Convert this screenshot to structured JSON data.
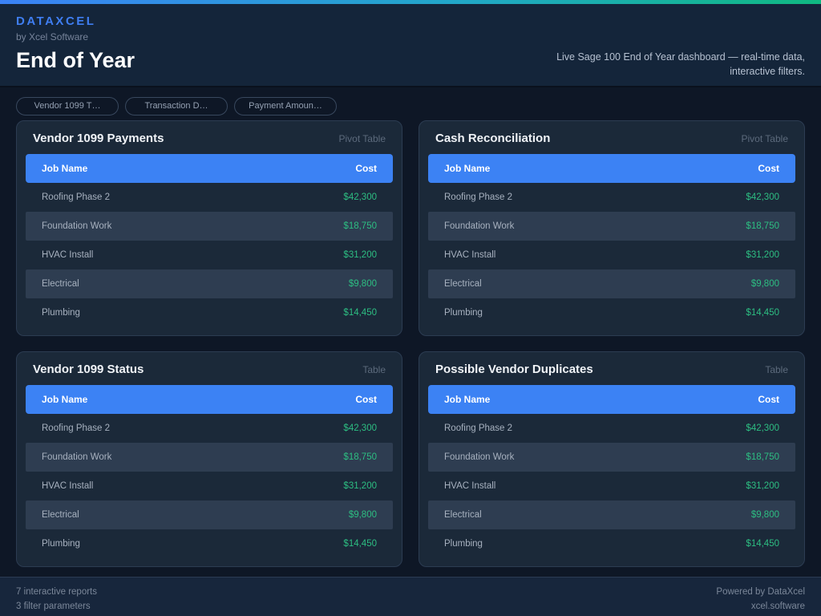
{
  "header": {
    "brand": "DATAXCEL",
    "byline": "by Xcel Software",
    "title": "End of Year",
    "tagline_line1": "Live Sage 100 End of Year dashboard — real-time data,",
    "tagline_line2": "interactive filters."
  },
  "filters": [
    {
      "label": "Vendor 1099 T…"
    },
    {
      "label": "Transaction D…"
    },
    {
      "label": "Payment Amoun…"
    }
  ],
  "cards": [
    {
      "title": "Vendor 1099 Payments",
      "type_label": "Pivot Table",
      "columns": {
        "job": "Job Name",
        "cost": "Cost"
      },
      "rows": [
        {
          "job": "Roofing Phase 2",
          "cost": "$42,300"
        },
        {
          "job": "Foundation Work",
          "cost": "$18,750"
        },
        {
          "job": "HVAC Install",
          "cost": "$31,200"
        },
        {
          "job": "Electrical",
          "cost": "$9,800"
        },
        {
          "job": "Plumbing",
          "cost": "$14,450"
        }
      ]
    },
    {
      "title": "Cash Reconciliation",
      "type_label": "Pivot Table",
      "columns": {
        "job": "Job Name",
        "cost": "Cost"
      },
      "rows": [
        {
          "job": "Roofing Phase 2",
          "cost": "$42,300"
        },
        {
          "job": "Foundation Work",
          "cost": "$18,750"
        },
        {
          "job": "HVAC Install",
          "cost": "$31,200"
        },
        {
          "job": "Electrical",
          "cost": "$9,800"
        },
        {
          "job": "Plumbing",
          "cost": "$14,450"
        }
      ]
    },
    {
      "title": "Vendor 1099 Status",
      "type_label": "Table",
      "columns": {
        "job": "Job Name",
        "cost": "Cost"
      },
      "rows": [
        {
          "job": "Roofing Phase 2",
          "cost": "$42,300"
        },
        {
          "job": "Foundation Work",
          "cost": "$18,750"
        },
        {
          "job": "HVAC Install",
          "cost": "$31,200"
        },
        {
          "job": "Electrical",
          "cost": "$9,800"
        },
        {
          "job": "Plumbing",
          "cost": "$14,450"
        }
      ]
    },
    {
      "title": "Possible Vendor Duplicates",
      "type_label": "Table",
      "columns": {
        "job": "Job Name",
        "cost": "Cost"
      },
      "rows": [
        {
          "job": "Roofing Phase 2",
          "cost": "$42,300"
        },
        {
          "job": "Foundation Work",
          "cost": "$18,750"
        },
        {
          "job": "HVAC Install",
          "cost": "$31,200"
        },
        {
          "job": "Electrical",
          "cost": "$9,800"
        },
        {
          "job": "Plumbing",
          "cost": "$14,450"
        }
      ]
    }
  ],
  "footer": {
    "reports_count": "7 interactive reports",
    "filters_count": "3 filter parameters",
    "powered_by": "Powered by DataXcel",
    "site": "xcel.software"
  },
  "colors": {
    "accent_blue": "#3c82f4",
    "accent_green": "#2dbe82",
    "strip_gradient_start": "#3b82f6",
    "strip_gradient_end": "#10b981",
    "header_bg": "#14253a",
    "card_bg": "#1b2939",
    "stripe_bg": "#2e3d51"
  }
}
